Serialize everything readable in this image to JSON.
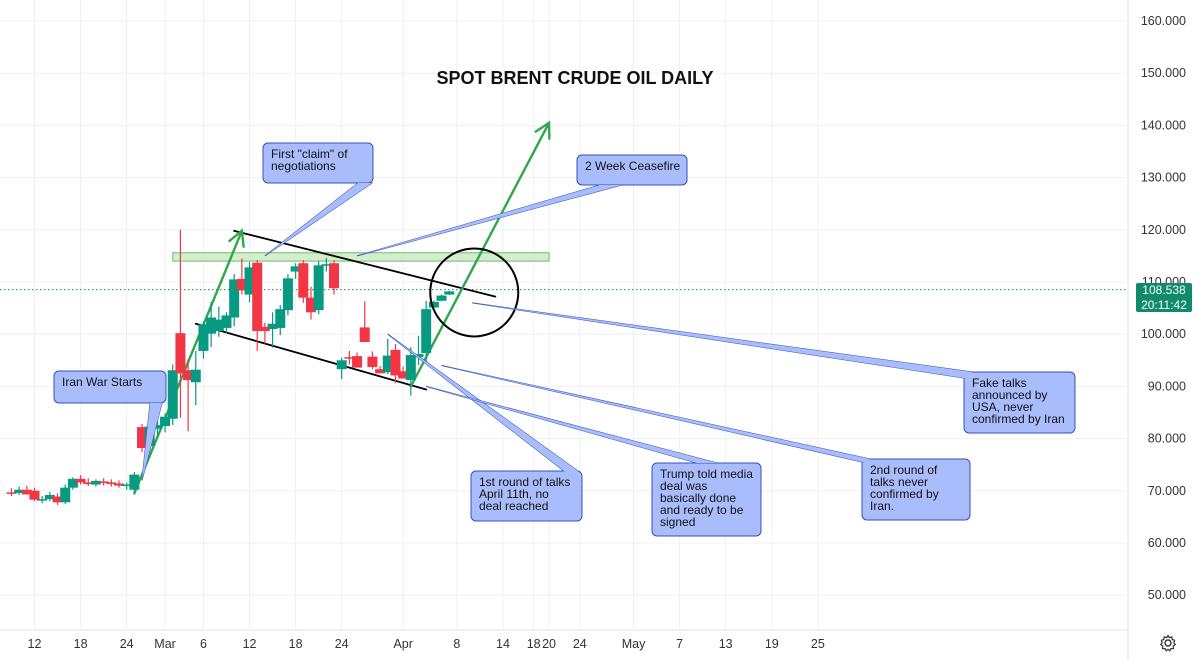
{
  "chart_data": {
    "type": "candlestick",
    "title": "SPOT BRENT CRUDE OIL DAILY",
    "ylim": [
      45000,
      162000
    ],
    "y_ticks": [
      50000,
      60000,
      70000,
      80000,
      90000,
      100000,
      110000,
      120000,
      130000,
      140000,
      150000,
      160000
    ],
    "y_tick_labels": [
      "50.000",
      "60.000",
      "70.000",
      "80.000",
      "90.000",
      "100.000",
      "110.000",
      "120.000",
      "130.000",
      "140.000",
      "150.000",
      "160.000"
    ],
    "x_tick_labels": [
      {
        "label": "12",
        "day": 0
      },
      {
        "label": "18",
        "day": 6
      },
      {
        "label": "24",
        "day": 12
      },
      {
        "label": "Mar",
        "day": 17
      },
      {
        "label": "6",
        "day": 22
      },
      {
        "label": "12",
        "day": 28
      },
      {
        "label": "18",
        "day": 34
      },
      {
        "label": "24",
        "day": 40
      },
      {
        "label": "Apr",
        "day": 48
      },
      {
        "label": "8",
        "day": 55
      },
      {
        "label": "14",
        "day": 61
      },
      {
        "label": "18",
        "day": 65
      },
      {
        "label": "20",
        "day": 67
      },
      {
        "label": "24",
        "day": 71
      },
      {
        "label": "May",
        "day": 78
      },
      {
        "label": "7",
        "day": 84
      },
      {
        "label": "13",
        "day": 90
      },
      {
        "label": "19",
        "day": 96
      },
      {
        "label": "25",
        "day": 102
      }
    ],
    "current_price": "108.538",
    "countdown": "20:11:42",
    "candles": [
      {
        "day": -3,
        "o": 69.7,
        "h": 70.5,
        "l": 69.0,
        "c": 69.6
      },
      {
        "day": -2,
        "o": 69.6,
        "h": 70.8,
        "l": 69.2,
        "c": 70.2
      },
      {
        "day": -1,
        "o": 70.2,
        "h": 71.0,
        "l": 69.5,
        "c": 69.3
      },
      {
        "day": 0,
        "o": 70.0,
        "h": 70.6,
        "l": 68.0,
        "c": 68.3
      },
      {
        "day": 1,
        "o": 68.2,
        "h": 69.0,
        "l": 67.6,
        "c": 68.4
      },
      {
        "day": 2,
        "o": 68.4,
        "h": 69.8,
        "l": 68.0,
        "c": 69.2
      },
      {
        "day": 3,
        "o": 68.9,
        "h": 69.5,
        "l": 67.3,
        "c": 67.8
      },
      {
        "day": 4,
        "o": 67.8,
        "h": 71.2,
        "l": 67.5,
        "c": 70.6
      },
      {
        "day": 5,
        "o": 70.6,
        "h": 72.6,
        "l": 70.2,
        "c": 72.3
      },
      {
        "day": 6,
        "o": 72.3,
        "h": 73.0,
        "l": 71.2,
        "c": 71.6
      },
      {
        "day": 7,
        "o": 71.6,
        "h": 72.4,
        "l": 70.9,
        "c": 71.3
      },
      {
        "day": 8,
        "o": 71.2,
        "h": 72.2,
        "l": 70.8,
        "c": 71.9
      },
      {
        "day": 9,
        "o": 71.8,
        "h": 72.4,
        "l": 71.0,
        "c": 71.6
      },
      {
        "day": 10,
        "o": 71.6,
        "h": 72.2,
        "l": 70.8,
        "c": 71.3
      },
      {
        "day": 11,
        "o": 71.4,
        "h": 72.0,
        "l": 70.6,
        "c": 71.0
      },
      {
        "day": 12,
        "o": 70.9,
        "h": 71.6,
        "l": 70.2,
        "c": 71.2
      },
      {
        "day": 13,
        "o": 70.2,
        "h": 73.6,
        "l": 69.8,
        "c": 73.1
      },
      {
        "day": 14,
        "o": 82.2,
        "h": 82.8,
        "l": 77.4,
        "c": 78.2
      },
      {
        "day": 15,
        "o": 78.6,
        "h": 85.6,
        "l": 77.2,
        "c": 82.3
      },
      {
        "day": 16,
        "o": 81.9,
        "h": 83.6,
        "l": 80.3,
        "c": 82.6
      },
      {
        "day": 17,
        "o": 82.4,
        "h": 84.8,
        "l": 81.2,
        "c": 84.2
      },
      {
        "day": 18,
        "o": 83.8,
        "h": 94.2,
        "l": 82.6,
        "c": 93.1
      },
      {
        "day": 19,
        "o": 100.2,
        "h": 120.0,
        "l": 84.0,
        "c": 92.5
      },
      {
        "day": 20,
        "o": 93.1,
        "h": 95.2,
        "l": 81.4,
        "c": 91.2
      },
      {
        "day": 21,
        "o": 90.8,
        "h": 96.8,
        "l": 86.4,
        "c": 93.2
      },
      {
        "day": 22,
        "o": 96.8,
        "h": 102.4,
        "l": 95.3,
        "c": 101.9
      },
      {
        "day": 23,
        "o": 100.1,
        "h": 106.2,
        "l": 97.5,
        "c": 103.2
      },
      {
        "day": 24,
        "o": 100.6,
        "h": 105.3,
        "l": 99.5,
        "c": 102.8
      },
      {
        "day": 25,
        "o": 101.2,
        "h": 104.2,
        "l": 100.2,
        "c": 103.6
      },
      {
        "day": 26,
        "o": 103.2,
        "h": 111.5,
        "l": 101.5,
        "c": 110.5
      },
      {
        "day": 27,
        "o": 110.6,
        "h": 114.5,
        "l": 107.6,
        "c": 108.4
      },
      {
        "day": 28,
        "o": 107.6,
        "h": 113.8,
        "l": 106.1,
        "c": 112.8
      },
      {
        "day": 29,
        "o": 113.7,
        "h": 114.2,
        "l": 96.8,
        "c": 100.6
      },
      {
        "day": 30,
        "o": 101.4,
        "h": 102.2,
        "l": 98.2,
        "c": 100.6
      },
      {
        "day": 31,
        "o": 101.0,
        "h": 104.2,
        "l": 97.4,
        "c": 102.0
      },
      {
        "day": 32,
        "o": 101.2,
        "h": 105.6,
        "l": 99.8,
        "c": 104.8
      },
      {
        "day": 33,
        "o": 104.6,
        "h": 111.5,
        "l": 103.6,
        "c": 110.7
      },
      {
        "day": 34,
        "o": 112.0,
        "h": 113.6,
        "l": 110.6,
        "c": 113.0
      },
      {
        "day": 35,
        "o": 113.6,
        "h": 114.2,
        "l": 106.0,
        "c": 107.0
      },
      {
        "day": 36,
        "o": 107.0,
        "h": 109.1,
        "l": 102.8,
        "c": 104.2
      },
      {
        "day": 37,
        "o": 104.6,
        "h": 114.0,
        "l": 103.8,
        "c": 113.2
      },
      {
        "day": 38,
        "o": 113.1,
        "h": 114.6,
        "l": 112.0,
        "c": 113.4
      },
      {
        "day": 39,
        "o": 113.6,
        "h": 114.2,
        "l": 107.6,
        "c": 108.8
      },
      {
        "day": 40,
        "o": 93.3,
        "h": 95.5,
        "l": 91.4,
        "c": 95.0
      },
      {
        "day": 41,
        "o": 95.6,
        "h": 96.8,
        "l": 94.2,
        "c": 95.4
      },
      {
        "day": 42,
        "o": 95.8,
        "h": 96.5,
        "l": 93.8,
        "c": 93.6
      },
      {
        "day": 43,
        "o": 101.3,
        "h": 106.3,
        "l": 99.3,
        "c": 98.5
      },
      {
        "day": 44,
        "o": 95.7,
        "h": 96.7,
        "l": 93.3,
        "c": 93.7
      },
      {
        "day": 45,
        "o": 93.3,
        "h": 93.9,
        "l": 92.6,
        "c": 92.5
      },
      {
        "day": 46,
        "o": 92.7,
        "h": 99.1,
        "l": 92.3,
        "c": 95.9
      },
      {
        "day": 47,
        "o": 97.0,
        "h": 98.1,
        "l": 90.6,
        "c": 92.1
      },
      {
        "day": 48,
        "o": 92.9,
        "h": 93.8,
        "l": 91.6,
        "c": 91.5
      },
      {
        "day": 49,
        "o": 91.2,
        "h": 97.5,
        "l": 88.2,
        "c": 96.0
      },
      {
        "day": 50,
        "o": 95.6,
        "h": 99.7,
        "l": 94.1,
        "c": 96.2
      },
      {
        "day": 51,
        "o": 96.4,
        "h": 106.4,
        "l": 94.2,
        "c": 104.8
      },
      {
        "day": 52,
        "o": 105.1,
        "h": 106.4,
        "l": 105.5,
        "c": 106.2
      },
      {
        "day": 53,
        "o": 106.4,
        "h": 107.6,
        "l": 106.3,
        "c": 107.4
      },
      {
        "day": 54,
        "o": 107.6,
        "h": 108.3,
        "l": 107.5,
        "c": 108.2
      }
    ],
    "lines": [
      {
        "name": "upper-trendline",
        "from": {
          "day": 26,
          "v": 119.8
        },
        "to": {
          "day": 60,
          "v": 107.2
        },
        "color": "#000000"
      },
      {
        "name": "lower-trendline",
        "from": {
          "day": 21,
          "v": 102.0
        },
        "to": {
          "day": 51,
          "v": 89.4
        },
        "color": "#000000"
      },
      {
        "name": "arrow-rally-1",
        "from": {
          "day": 13,
          "v": 69.5
        },
        "to": {
          "day": 27,
          "v": 119.8
        },
        "color": "#2ea84a"
      },
      {
        "name": "arrow-rally-2",
        "from": {
          "day": 49,
          "v": 90.0
        },
        "to": {
          "day": 67,
          "v": 140.5
        },
        "color": "#2ea84a"
      }
    ],
    "zone": {
      "y_low": 114.0,
      "y_high": 115.6,
      "day_from": 18,
      "day_to": 67
    },
    "circle": {
      "day": 57,
      "v": 108.0
    },
    "callouts": [
      {
        "name": "callout-iran-war",
        "text": [
          "Iran War Starts"
        ],
        "target": {
          "day": 14,
          "v": 72
        }
      },
      {
        "name": "callout-first-claim",
        "text": [
          "First \"claim\" of",
          "negotiations"
        ],
        "target": {
          "day": 30,
          "v": 115
        }
      },
      {
        "name": "callout-ceasefire",
        "text": [
          "2 Week Ceasefire"
        ],
        "target": {
          "day": 42,
          "v": 115
        }
      },
      {
        "name": "callout-first-round",
        "text": [
          "1st round of talks",
          "April 11th, no",
          "deal reached"
        ],
        "target": {
          "day": 46,
          "v": 100
        }
      },
      {
        "name": "callout-trump",
        "text": [
          "Trump told media",
          "deal was",
          "basically done",
          "and ready to be",
          "signed"
        ],
        "target": {
          "day": 51,
          "v": 90
        }
      },
      {
        "name": "callout-second-round",
        "text": [
          "2nd round of",
          "talks never",
          "confirmed by",
          "Iran."
        ],
        "target": {
          "day": 53,
          "v": 94
        }
      },
      {
        "name": "callout-fake-talks",
        "text": [
          "Fake talks",
          "announced by",
          "USA, never",
          "confirmed by Iran"
        ],
        "target": {
          "day": 57,
          "v": 106
        }
      }
    ]
  },
  "colors": {
    "up": "#089981",
    "down": "#f23645",
    "trend_arrow": "#2ea84a",
    "callout_fill": "#a9bdfc",
    "callout_stroke": "#3550b8",
    "zone_fill": "#cfecc8",
    "zone_stroke": "#5cb85c",
    "price_line": "#0f8a6a"
  },
  "icons": {
    "settings": "settings-gear-icon"
  }
}
